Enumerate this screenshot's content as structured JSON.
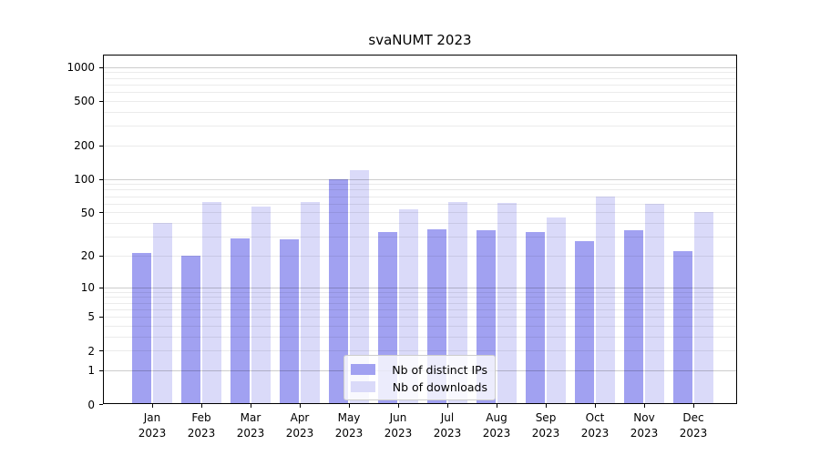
{
  "title": "svaNUMT 2023",
  "chart_data": {
    "type": "bar",
    "title": "svaNUMT 2023",
    "categories": [
      "Jan 2023",
      "Feb 2023",
      "Mar 2023",
      "Apr 2023",
      "May 2023",
      "Jun 2023",
      "Jul 2023",
      "Aug 2023",
      "Sep 2023",
      "Oct 2023",
      "Nov 2023",
      "Dec 2023"
    ],
    "series": [
      {
        "name": "Nb of distinct IPs",
        "color": "#a1a1f1",
        "values": [
          21,
          20,
          29,
          28,
          100,
          33,
          35,
          34,
          33,
          27,
          34,
          22
        ]
      },
      {
        "name": "Nb of downloads",
        "color": "#dadaf9",
        "values": [
          40,
          62,
          56,
          62,
          120,
          53,
          62,
          61,
          45,
          69,
          60,
          50
        ]
      }
    ],
    "yscale": "log1p",
    "y_ticks": [
      0,
      1,
      2,
      5,
      10,
      20,
      50,
      100,
      200,
      500,
      1000
    ],
    "ylim": [
      0,
      1290
    ],
    "xlabel": "",
    "ylabel": "",
    "grid": true,
    "legend": {
      "position": "lower-center",
      "entries": [
        "Nb of distinct IPs",
        "Nb of downloads"
      ]
    }
  },
  "colors": {
    "bar_distinct_ips": "#a1a1f1",
    "bar_downloads": "#dadaf9",
    "grid_major": "#cccccc",
    "grid_minor": "#ebebeb",
    "axis": "#000000",
    "background": "#ffffff"
  }
}
